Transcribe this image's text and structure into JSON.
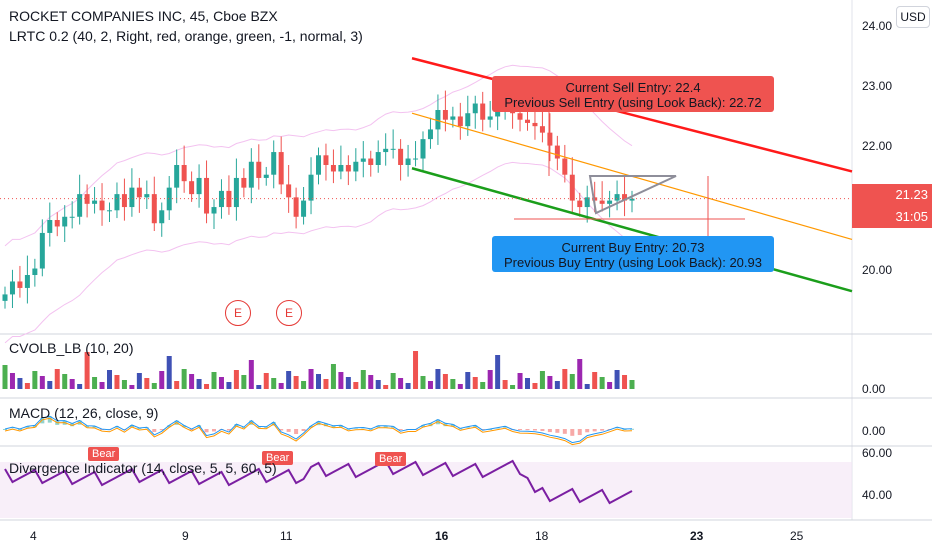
{
  "header": {
    "title": "ROCKET COMPANIES INC, 45, Cboe BZX",
    "indicator": "LRTC 0.2 (40, 2, Right, red, orange, green, -1, normal, 3)"
  },
  "currency_button": "USD",
  "price_axis": {
    "top_label": "24.00",
    "labels": [
      "23.00",
      "22.00",
      "20.00"
    ],
    "current_price": "21.23",
    "countdown": "31:05",
    "current_price_color": "#ef5350"
  },
  "callouts": {
    "sell": {
      "line1": "Current Sell Entry: 22.4",
      "line2": "Previous Sell Entry (using Look Back): 22.72",
      "color": "#ef5350"
    },
    "buy": {
      "line1": "Current Buy Entry: 20.73",
      "line2": "Previous Buy Entry (using Look Back): 20.93",
      "color": "#2196f3"
    }
  },
  "earnings_markers": [
    "E",
    "E"
  ],
  "panes": {
    "cvolb": {
      "title": "CVOLB_LB (10, 20)",
      "axis_label": "0.00"
    },
    "macd": {
      "title": "MACD (12, 26, close, 9)",
      "axis_label": "0.00"
    },
    "divergence": {
      "title": "Divergence Indicator (14, close, 5, 5, 60, 5)",
      "axis_top": "60.00",
      "axis_mid": "40.00",
      "bear_label": "Bear"
    }
  },
  "time_axis": {
    "labels": [
      "4",
      "9",
      "11",
      "16",
      "18",
      "23",
      "25"
    ]
  },
  "chart_data": {
    "type": "candlestick",
    "title": "ROCKET COMPANIES INC, 45, Cboe BZX",
    "ylim": [
      19.2,
      24.3
    ],
    "y_ticks": [
      20,
      22,
      23,
      24
    ],
    "x_ticks": [
      "4",
      "9",
      "11",
      "16",
      "18",
      "23",
      "25"
    ],
    "current_price": 21.23,
    "sell_entry": 22.4,
    "previous_sell_entry": 22.72,
    "buy_entry": 20.73,
    "previous_buy_entry": 20.93,
    "closes": [
      19.75,
      19.95,
      19.85,
      20.05,
      20.15,
      20.7,
      20.9,
      20.8,
      20.95,
      20.95,
      21.3,
      21.15,
      21.2,
      21.05,
      21.05,
      21.3,
      21.1,
      21.4,
      21.25,
      21.3,
      20.85,
      21.05,
      21.4,
      21.75,
      21.5,
      21.3,
      21.55,
      21.0,
      21.1,
      21.35,
      21.1,
      21.55,
      21.4,
      21.8,
      21.55,
      21.6,
      21.95,
      21.45,
      21.25,
      20.95,
      21.2,
      21.6,
      21.9,
      21.75,
      21.65,
      21.75,
      21.65,
      21.8,
      21.85,
      21.75,
      21.95,
      22.0,
      22.0,
      21.75,
      21.85,
      21.85,
      22.15,
      22.3,
      22.6,
      22.45,
      22.5,
      22.35,
      22.55,
      22.7,
      22.45,
      22.5,
      22.6,
      22.7,
      22.55,
      22.45,
      22.4,
      22.35,
      22.25,
      22.05,
      21.85,
      21.6,
      21.2,
      21.1,
      21.25,
      21.2,
      21.15,
      21.2,
      21.3,
      21.2,
      21.23
    ],
    "lrtc_channel": {
      "upper": [
        [
          0.0,
          23.4
        ],
        [
          1.0,
          21.65
        ]
      ],
      "middle": [
        [
          0.0,
          22.55
        ],
        [
          1.0,
          20.6
        ]
      ],
      "lower": [
        [
          0.0,
          21.7
        ],
        [
          1.0,
          19.8
        ]
      ]
    }
  }
}
